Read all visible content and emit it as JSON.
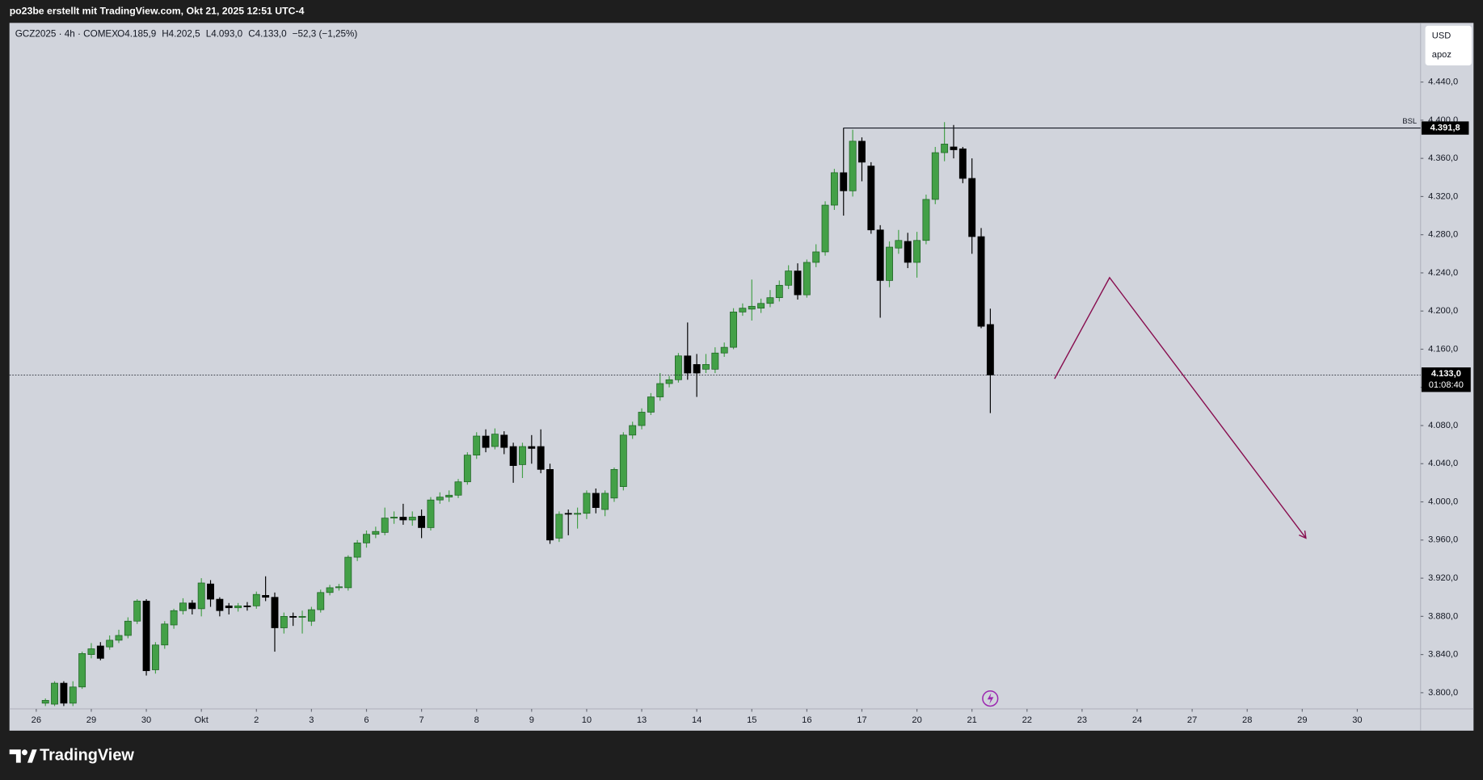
{
  "header": {
    "title": "po23be erstellt mit TradingView.com, Okt 21, 2025 12:51 UTC-4"
  },
  "footer": {
    "brand": "TradingView"
  },
  "chart_data": {
    "type": "candlestick",
    "symbol": "GCZ2025 · 4h · COMEX",
    "ohlc_labels": [
      "O4.185,9",
      "H4.202,5",
      "L4.093,0",
      "C4.133,0"
    ],
    "change": "−52,3 (−1,25%)",
    "currency": "USD",
    "scale_name": "apoz",
    "up_color": "#43a047",
    "down_color": "#000000",
    "xlim": [
      -3.92,
      149.9
    ],
    "ylim": [
      3783,
      4502
    ],
    "grid": false,
    "xticks": [
      {
        "value": -1,
        "label": "26"
      },
      {
        "value": 5,
        "label": "29"
      },
      {
        "value": 11,
        "label": "30"
      },
      {
        "value": 17,
        "label": "Okt"
      },
      {
        "value": 23,
        "label": "2"
      },
      {
        "value": 29,
        "label": "3"
      },
      {
        "value": 35,
        "label": "6"
      },
      {
        "value": 41,
        "label": "7"
      },
      {
        "value": 47,
        "label": "8"
      },
      {
        "value": 53,
        "label": "9"
      },
      {
        "value": 59,
        "label": "10"
      },
      {
        "value": 65,
        "label": "13"
      },
      {
        "value": 71,
        "label": "14"
      },
      {
        "value": 77,
        "label": "15"
      },
      {
        "value": 83,
        "label": "16"
      },
      {
        "value": 89,
        "label": "17"
      },
      {
        "value": 95,
        "label": "20"
      },
      {
        "value": 101,
        "label": "21"
      },
      {
        "value": 107,
        "label": "22"
      },
      {
        "value": 113,
        "label": "23"
      },
      {
        "value": 119,
        "label": "24"
      },
      {
        "value": 125,
        "label": "27"
      },
      {
        "value": 131,
        "label": "28"
      },
      {
        "value": 137,
        "label": "29"
      },
      {
        "value": 143,
        "label": "30"
      }
    ],
    "yticks": [
      {
        "value": 3800,
        "label": "3.800,0"
      },
      {
        "value": 3840,
        "label": "3.840,0"
      },
      {
        "value": 3880,
        "label": "3.880,0"
      },
      {
        "value": 3920,
        "label": "3.920,0"
      },
      {
        "value": 3960,
        "label": "3.960,0"
      },
      {
        "value": 4000,
        "label": "4.000,0"
      },
      {
        "value": 4040,
        "label": "4.040,0"
      },
      {
        "value": 4080,
        "label": "4.080,0"
      },
      {
        "value": 4120,
        "label": "4.120,0"
      },
      {
        "value": 4160,
        "label": "4.160,0"
      },
      {
        "value": 4200,
        "label": "4.200,0"
      },
      {
        "value": 4240,
        "label": "4.240,0"
      },
      {
        "value": 4280,
        "label": "4.280,0"
      },
      {
        "value": 4320,
        "label": "4.320,0"
      },
      {
        "value": 4360,
        "label": "4.360,0"
      },
      {
        "value": 4400,
        "label": "4.400,0"
      },
      {
        "value": 4440,
        "label": "4.440,0"
      }
    ],
    "x": [
      0,
      1,
      2,
      3,
      4,
      5,
      6,
      7,
      8,
      9,
      10,
      11,
      12,
      13,
      14,
      15,
      16,
      17,
      18,
      19,
      20,
      21,
      22,
      23,
      24,
      25,
      26,
      27,
      28,
      29,
      30,
      31,
      32,
      33,
      34,
      35,
      36,
      37,
      38,
      39,
      40,
      41,
      42,
      43,
      44,
      45,
      46,
      47,
      48,
      49,
      50,
      51,
      52,
      53,
      54,
      55,
      56,
      57,
      58,
      59,
      60,
      61,
      62,
      63,
      64,
      65,
      66,
      67,
      68,
      69,
      70,
      71,
      72,
      73,
      74,
      75,
      76,
      77,
      78,
      79,
      80,
      81,
      82,
      83,
      84,
      85,
      86,
      87,
      88,
      89,
      90,
      91,
      92,
      93,
      94,
      95,
      96,
      97,
      98,
      99,
      100,
      101,
      102,
      103
    ],
    "open": [
      3789,
      3788,
      3810,
      3789,
      3806,
      3840,
      3849,
      3848,
      3855,
      3860,
      3875,
      3896,
      3824,
      3850,
      3871,
      3886,
      3894,
      3888,
      3914,
      3898,
      3891,
      3889,
      3891,
      3891,
      3902,
      3900,
      3868,
      3880,
      3879,
      3875,
      3887,
      3905,
      3910,
      3910,
      3942,
      3957,
      3966,
      3968,
      3983,
      3984,
      3981,
      3985,
      3973,
      4002,
      4005,
      4007,
      4021,
      4049,
      4069,
      4058,
      4070,
      4058,
      4039,
      4058,
      4058,
      4034,
      3962,
      3988,
      3987,
      3988,
      4009,
      3992,
      4004,
      4016,
      4070,
      4080,
      4094,
      4110,
      4124,
      4128,
      4153,
      4144,
      4139,
      4139,
      4156,
      4162,
      4199,
      4202,
      4203,
      4208,
      4214,
      4227,
      4242,
      4217,
      4251,
      4262,
      4311,
      4345,
      4326,
      4378,
      4352,
      4285,
      4232,
      4266,
      4273,
      4251,
      4274,
      4317,
      4366,
      4372,
      4370,
      4339,
      4278,
      4185.9
    ],
    "high": [
      3794,
      3812,
      3812,
      3812,
      3843,
      3852,
      3853,
      3860,
      3866,
      3879,
      3898,
      3898,
      3853,
      3875,
      3888,
      3899,
      3897,
      3920,
      3918,
      3900,
      3894,
      3894,
      3895,
      3906,
      3922,
      3905,
      3884,
      3884,
      3886,
      3890,
      3908,
      3913,
      3914,
      3944,
      3960,
      3970,
      3974,
      3994,
      3990,
      3998,
      3990,
      3992,
      4005,
      4010,
      4012,
      4024,
      4052,
      4073,
      4076,
      4077,
      4074,
      4062,
      4062,
      4070,
      4076,
      4040,
      3990,
      3992,
      3994,
      4012,
      4014,
      4012,
      4036,
      4073,
      4084,
      4098,
      4114,
      4135,
      4132,
      4156,
      4188,
      4155,
      4155,
      4162,
      4167,
      4203,
      4208,
      4233,
      4213,
      4222,
      4232,
      4248,
      4250,
      4254,
      4270,
      4315,
      4349,
      4392,
      4390,
      4382,
      4356,
      4290,
      4273,
      4285,
      4282,
      4283,
      4322,
      4372,
      4398,
      4395,
      4372,
      4360,
      4287,
      4202.5
    ],
    "low": [
      3786,
      3786,
      3786,
      3786,
      3804,
      3836,
      3834,
      3845,
      3852,
      3857,
      3872,
      3818,
      3820,
      3846,
      3867,
      3882,
      3882,
      3880,
      3890,
      3880,
      3882,
      3885,
      3886,
      3888,
      3896,
      3843,
      3862,
      3870,
      3862,
      3870,
      3884,
      3902,
      3907,
      3907,
      3938,
      3952,
      3962,
      3965,
      3977,
      3976,
      3975,
      3962,
      3970,
      3998,
      4000,
      4004,
      4018,
      4045,
      4052,
      4055,
      4050,
      4020,
      4025,
      4040,
      4030,
      3956,
      3958,
      3965,
      3972,
      3982,
      3988,
      3985,
      4000,
      4012,
      4066,
      4076,
      4091,
      4106,
      4120,
      4125,
      4128,
      4110,
      4135,
      4135,
      4152,
      4160,
      4195,
      4190,
      4198,
      4204,
      4210,
      4223,
      4212,
      4214,
      4246,
      4258,
      4306,
      4300,
      4320,
      4336,
      4281,
      4193,
      4225,
      4260,
      4245,
      4235,
      4270,
      4312,
      4357,
      4360,
      4334,
      4260,
      4182,
      4093
    ],
    "close": [
      3792,
      3810,
      3789,
      3806,
      3841,
      3846,
      3836,
      3855,
      3860,
      3875,
      3896,
      3823,
      3850,
      3872,
      3886,
      3894,
      3888,
      3915,
      3898,
      3886,
      3889,
      3891,
      3890,
      3903,
      3900,
      3868,
      3880,
      3879,
      3880,
      3887,
      3905,
      3910,
      3911,
      3942,
      3957,
      3966,
      3969,
      3983,
      3984,
      3981,
      3984,
      3973,
      4002,
      4005,
      4007,
      4021,
      4049,
      4069,
      4057,
      4071,
      4057,
      4038,
      4058,
      4056,
      4034,
      3960,
      3987,
      3987,
      3988,
      4009,
      3994,
      4009,
      4034,
      4070,
      4080,
      4094,
      4110,
      4124,
      4128,
      4153,
      4135,
      4135,
      4144,
      4156,
      4162,
      4199,
      4203,
      4205,
      4208,
      4214,
      4227,
      4242,
      4217,
      4251,
      4262,
      4311,
      4345,
      4326,
      4378,
      4356,
      4285,
      4232,
      4267,
      4274,
      4251,
      4274,
      4317,
      4366,
      4375,
      4369,
      4339,
      4278,
      4184,
      4133
    ],
    "last_price": {
      "value": 4133,
      "label": "4.133,0",
      "countdown": "01:08:40"
    },
    "bsl": {
      "label": "BSL",
      "value": 4391.8,
      "value_label": "4.391,8",
      "start_x": 87
    },
    "projection": {
      "color": "#880e4f",
      "x": [
        110,
        116,
        137.4
      ],
      "y": [
        4129,
        4235,
        3962
      ]
    }
  }
}
